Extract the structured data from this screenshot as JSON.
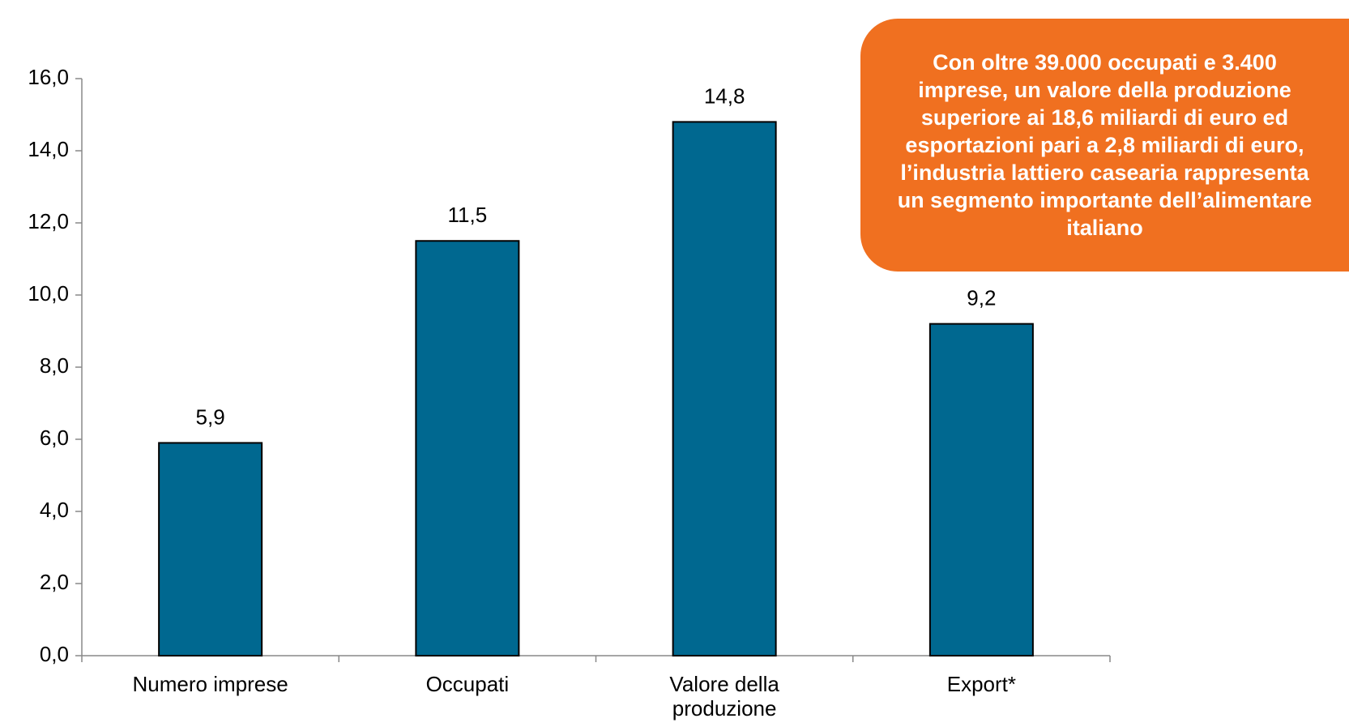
{
  "chart_data": {
    "type": "bar",
    "categories": [
      "Numero imprese",
      "Occupati",
      "Valore della produzione",
      "Export*"
    ],
    "values": [
      5.9,
      11.5,
      14.8,
      9.2
    ],
    "value_labels": [
      "5,9",
      "11,5",
      "14,8",
      "9,2"
    ],
    "color": "#006890",
    "ylim": [
      0,
      16
    ],
    "yticks": [
      {
        "value": 0,
        "label": "0,0"
      },
      {
        "value": 2,
        "label": "2,0"
      },
      {
        "value": 4,
        "label": "4,0"
      },
      {
        "value": 6,
        "label": "6,0"
      },
      {
        "value": 8,
        "label": "8,0"
      },
      {
        "value": 10,
        "label": "10,0"
      },
      {
        "value": 12,
        "label": "12,0"
      },
      {
        "value": 14,
        "label": "14,0"
      },
      {
        "value": 16,
        "label": "16,0"
      }
    ],
    "grid": false,
    "annotation": "Con oltre 39.000 occupati e 3.400 imprese, un valore della produzione superiore ai 18,6 miliardi di euro ed esportazioni pari a 2,8 miliardi di euro, l’industria lattiero casearia rappresenta un segmento importante dell’alimentare italiano"
  }
}
